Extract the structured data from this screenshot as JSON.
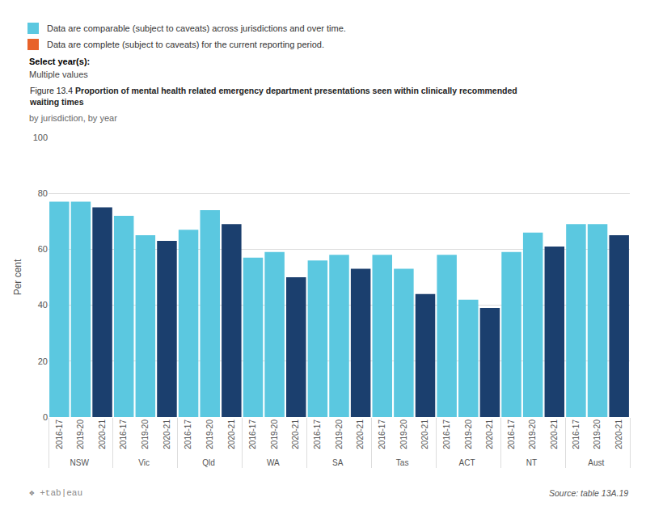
{
  "chart_data": {
    "type": "bar",
    "figure_label": "Figure 13.4",
    "title": "Proportion of mental health related emergency department presentations seen within clinically recommended\nwaiting times",
    "subtitle": "by jurisdiction, by year",
    "ylabel": "Per cent",
    "categories": [
      "NSW",
      "Vic",
      "Qld",
      "WA",
      "SA",
      "Tas",
      "ACT",
      "NT",
      "Aust"
    ],
    "series": [
      {
        "name": "2016-17",
        "color": "#5BC8E0",
        "values": [
          77,
          72,
          67,
          57,
          56,
          58,
          58,
          59,
          69
        ]
      },
      {
        "name": "2019-20",
        "color": "#5BC8E0",
        "values": [
          77,
          65,
          74,
          59,
          58,
          53,
          42,
          66,
          69
        ]
      },
      {
        "name": "2020-21",
        "color": "#1B3F6E",
        "values": [
          75,
          63,
          69,
          50,
          53,
          44,
          39,
          61,
          65
        ]
      }
    ],
    "ylim": [
      0,
      100
    ],
    "yticks": [
      0,
      20,
      40,
      60,
      80,
      100
    ],
    "grid": true,
    "legend_items": [
      {
        "label": "Data are comparable (subject to caveats) across jurisdictions and over time.",
        "color": "#5BC8E0"
      },
      {
        "label": "Data are complete (subject to caveats) for the current reporting period.",
        "color": "#E8622A"
      }
    ],
    "annotations": [
      "Select year(s):",
      "Multiple values",
      "Source: table 13A.19",
      "❖ +tab|eau"
    ]
  }
}
